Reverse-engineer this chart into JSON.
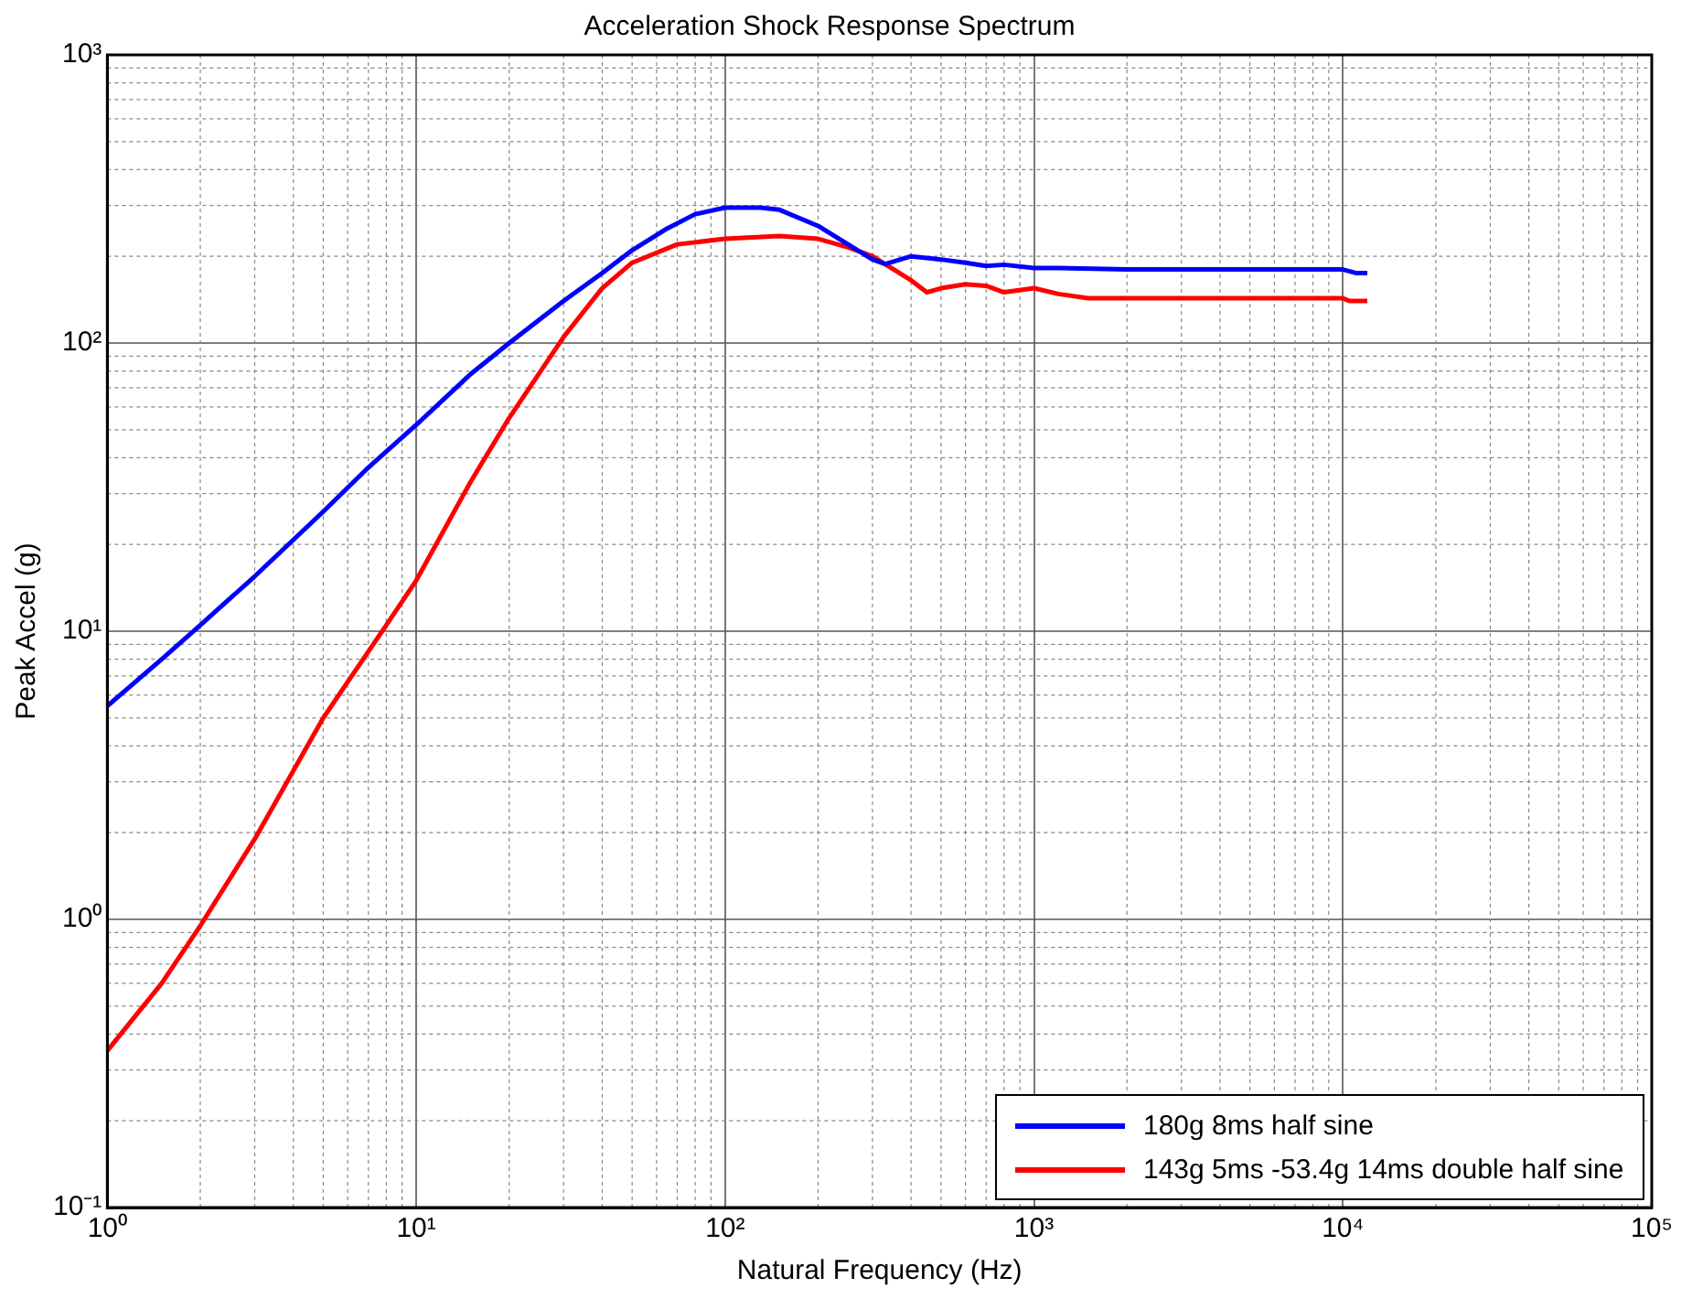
{
  "chart_data": {
    "type": "line",
    "title": "Acceleration Shock Response Spectrum",
    "xlabel": "Natural Frequency (Hz)",
    "ylabel": "Peak Accel (g)",
    "log": "xy",
    "grid": true,
    "legend": "bottom right",
    "marker": "none",
    "line_style": "solid",
    "xlim": [
      1,
      100000
    ],
    "xticks": [
      {
        "value": 1,
        "label": "10⁰"
      },
      {
        "value": 10,
        "label": "10¹"
      },
      {
        "value": 100,
        "label": "10²"
      },
      {
        "value": 1000,
        "label": "10³"
      },
      {
        "value": 10000,
        "label": "10⁴"
      },
      {
        "value": 100000,
        "label": "10⁵"
      }
    ],
    "ylim": [
      0.1,
      1000
    ],
    "yticks": [
      {
        "value": 0.1,
        "label": "10⁻¹"
      },
      {
        "value": 1,
        "label": "10⁰"
      },
      {
        "value": 10,
        "label": "10¹"
      },
      {
        "value": 100,
        "label": "10²"
      },
      {
        "value": 1000,
        "label": "10³"
      }
    ],
    "series": [
      {
        "name": "180g 8ms half sine",
        "color": "#0000ff",
        "x": [
          1,
          1.5,
          2,
          3,
          5,
          7,
          10,
          15,
          20,
          30,
          40,
          50,
          65,
          80,
          100,
          130,
          150,
          200,
          250,
          300,
          330,
          400,
          500,
          600,
          700,
          800,
          1000,
          1200,
          2000,
          5000,
          10000,
          11000,
          12000
        ],
        "values": [
          5.5,
          8,
          10.5,
          15.5,
          26,
          37,
          52,
          78,
          100,
          140,
          175,
          210,
          250,
          280,
          295,
          295,
          290,
          255,
          220,
          195,
          188,
          200,
          195,
          190,
          185,
          187,
          182,
          182,
          180,
          180,
          180,
          175,
          175
        ]
      },
      {
        "name": "143g 5ms -53.4g 14ms double half sine",
        "color": "#ff0000",
        "x": [
          1,
          1.5,
          2,
          3,
          5,
          8,
          10,
          15,
          20,
          30,
          40,
          50,
          70,
          100,
          150,
          200,
          250,
          300,
          400,
          450,
          500,
          600,
          700,
          800,
          1000,
          1200,
          1500,
          3000,
          10000,
          10500,
          12000
        ],
        "values": [
          0.35,
          0.6,
          0.95,
          1.9,
          5,
          10.5,
          15,
          33,
          55,
          105,
          155,
          190,
          220,
          230,
          235,
          230,
          215,
          200,
          165,
          150,
          155,
          160,
          158,
          150,
          155,
          148,
          143,
          143,
          143,
          140,
          140
        ]
      }
    ]
  }
}
